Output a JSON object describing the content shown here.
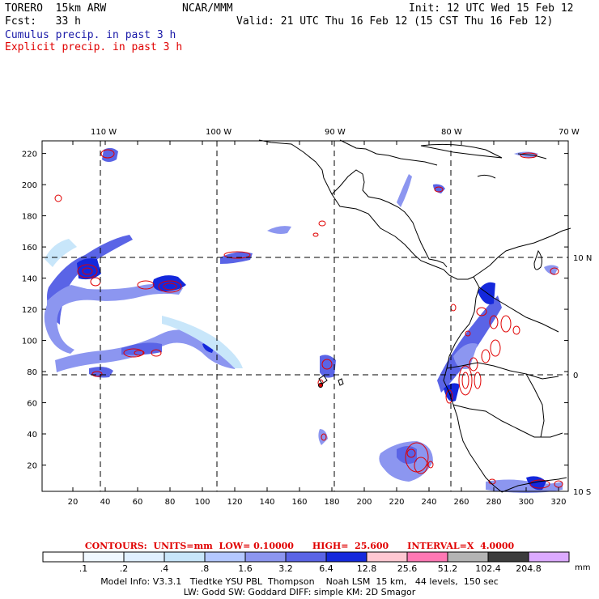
{
  "header": {
    "model": "TORERO  15km ARW",
    "org": "NCAR/MMM",
    "init": "Init: 12 UTC Wed 15 Feb 12",
    "fcst": "Fcst:   33 h",
    "valid": "Valid: 21 UTC Thu 16 Feb 12 (15 CST Thu 16 Feb 12)",
    "cumulus": "Cumulus precip. in past 3 h",
    "explicit": "Explicit precip. in past 3 h"
  },
  "map": {
    "lon_labels": [
      "110 W",
      "100 W",
      "90 W",
      "80 W",
      "70 W"
    ],
    "lat_labels": [
      "10 N",
      "0",
      "10 S"
    ],
    "x_ticks": [
      "20",
      "40",
      "60",
      "80",
      "100",
      "120",
      "140",
      "160",
      "180",
      "200",
      "220",
      "240",
      "260",
      "280",
      "300",
      "320"
    ],
    "y_ticks": [
      "20",
      "40",
      "60",
      "80",
      "100",
      "120",
      "140",
      "160",
      "180",
      "200",
      "220"
    ]
  },
  "contours": "CONTOURS:  UNITS=mm  LOW= 0.10000      HIGH=  25.600      INTERVAL=X  4.0000",
  "colorbar": {
    "labels": [
      ".1",
      ".2",
      ".4",
      ".8",
      "1.6",
      "3.2",
      "6.4",
      "12.8",
      "25.6",
      "51.2",
      "102.4",
      "204.8"
    ],
    "unit": "mm",
    "colors": [
      "#ffffff",
      "#f0f8ff",
      "#e0f0ff",
      "#c8e6fa",
      "#b4c8ff",
      "#8c96f0",
      "#5a64e6",
      "#1428dc",
      "#ffc8d2",
      "#ff78b4",
      "#b4b4b4",
      "#3c3c3c",
      "#dcaaff"
    ]
  },
  "footer": {
    "line1": "Model Info: V3.3.1   Tiedtke YSU PBL  Thompson    Noah LSM  15 km,   44 levels,  150 sec",
    "line2": "LW: Godd SW: Goddard DIFF: simple KM: 2D Smagor"
  }
}
